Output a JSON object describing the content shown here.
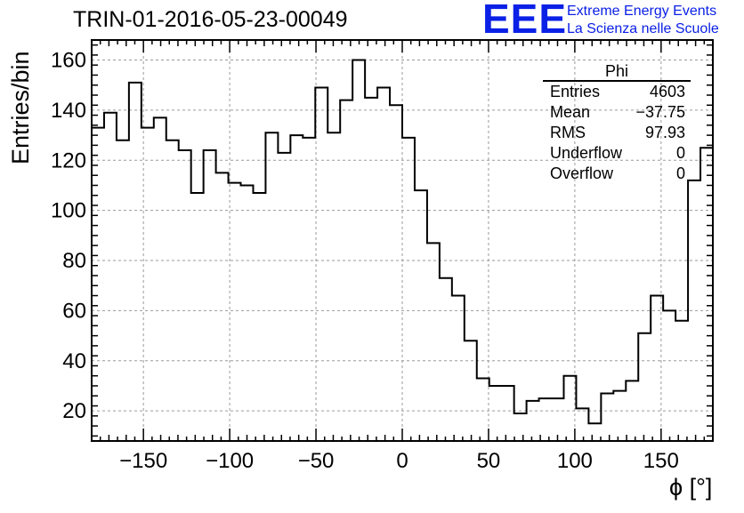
{
  "title": "TRIN-01-2016-05-23-00049",
  "logo": {
    "mark": "EEE",
    "line1": "Extreme Energy Events",
    "line2": "La Scienza nelle Scuole",
    "color": "#0b20e6"
  },
  "stats_box": {
    "name": "Phi",
    "rows": [
      {
        "label": "Entries",
        "value": "4603"
      },
      {
        "label": "Mean",
        "value": "−37.75"
      },
      {
        "label": "RMS",
        "value": "97.93"
      },
      {
        "label": "Underflow",
        "value": "0"
      },
      {
        "label": "Overflow",
        "value": "0"
      }
    ]
  },
  "chart_data": {
    "type": "bar",
    "style": "step-histogram",
    "title": "TRIN-01-2016-05-23-00049",
    "xlabel": "ϕ [°]",
    "ylabel": "Entries/bin",
    "xlim": [
      -180,
      180
    ],
    "ylim": [
      8,
      168
    ],
    "bin_width": 7.2,
    "x_ticks": [
      -150,
      -100,
      -50,
      0,
      50,
      100,
      150
    ],
    "x_tick_labels": [
      "−150",
      "−100",
      "−50",
      "0",
      "50",
      "100",
      "150"
    ],
    "y_ticks": [
      20,
      40,
      60,
      80,
      100,
      120,
      140,
      160
    ],
    "y_tick_labels": [
      "20",
      "40",
      "60",
      "80",
      "100",
      "120",
      "140",
      "160"
    ],
    "grid": true,
    "bin_edges_start": -180,
    "values": [
      133,
      139,
      128,
      151,
      133,
      137,
      128,
      124,
      107,
      124,
      115,
      111,
      110,
      107,
      131,
      123,
      130,
      129,
      149,
      131,
      144,
      160,
      145,
      149,
      142,
      129,
      108,
      87,
      73,
      66,
      48,
      33,
      30,
      30,
      19,
      24,
      25,
      25,
      34,
      21,
      15,
      27,
      28,
      32,
      51,
      66,
      60,
      56,
      112,
      125
    ],
    "line_color": "#000000",
    "grid_color": "#9a9a9a"
  }
}
